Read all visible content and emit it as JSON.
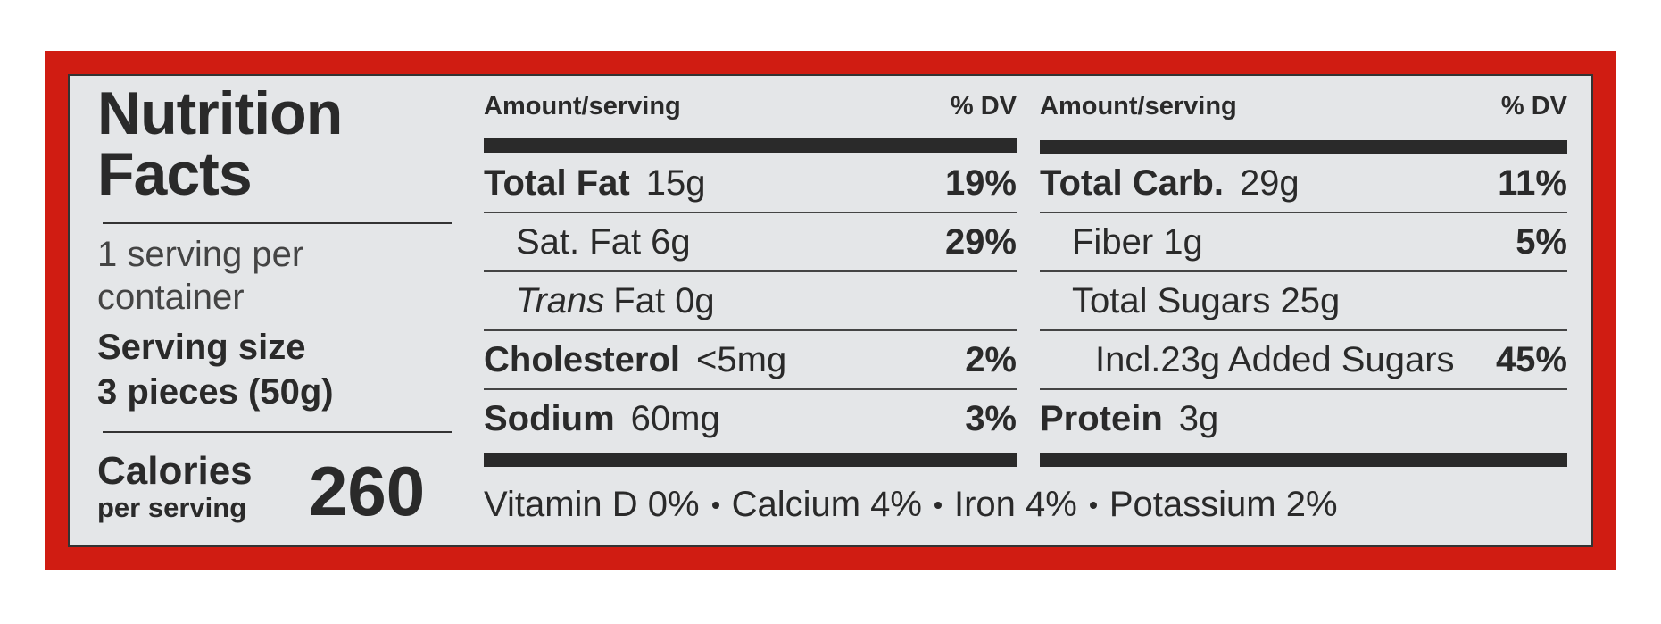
{
  "title": "Nutrition Facts",
  "servings": "1 serving per container",
  "serving_size_label": "Serving size",
  "serving_size": "3 pieces (50g)",
  "calories_label": "Calories",
  "calories_sub": "per serving",
  "calories": 260,
  "columns": [
    {
      "header_amount": "Amount/serving",
      "header_dv": "% DV",
      "rows": [
        {
          "name": "Total Fat",
          "amount": "15g",
          "dv": "19%"
        },
        {
          "name": "Sat. Fat 6g",
          "dv": "29%"
        },
        {
          "name_italic": "Trans",
          "name": "Fat 0g"
        },
        {
          "name": "Cholesterol",
          "amount": "<5mg",
          "dv": "2%"
        },
        {
          "name": "Sodium",
          "amount": "60mg",
          "dv": "3%"
        }
      ]
    },
    {
      "header_amount": "Amount/serving",
      "header_dv": "% DV",
      "rows": [
        {
          "name": "Total Carb.",
          "amount": "29g",
          "dv": "11%"
        },
        {
          "name": "Fiber 1g",
          "dv": "5%"
        },
        {
          "name": "Total Sugars 25g"
        },
        {
          "name": "Incl.23g Added Sugars",
          "dv": "45%"
        },
        {
          "name": "Protein",
          "amount": "3g"
        }
      ]
    }
  ],
  "vitamins": [
    "Vitamin D 0%",
    "Calcium 4%",
    "Iron 4%",
    "Potassium 2%"
  ]
}
